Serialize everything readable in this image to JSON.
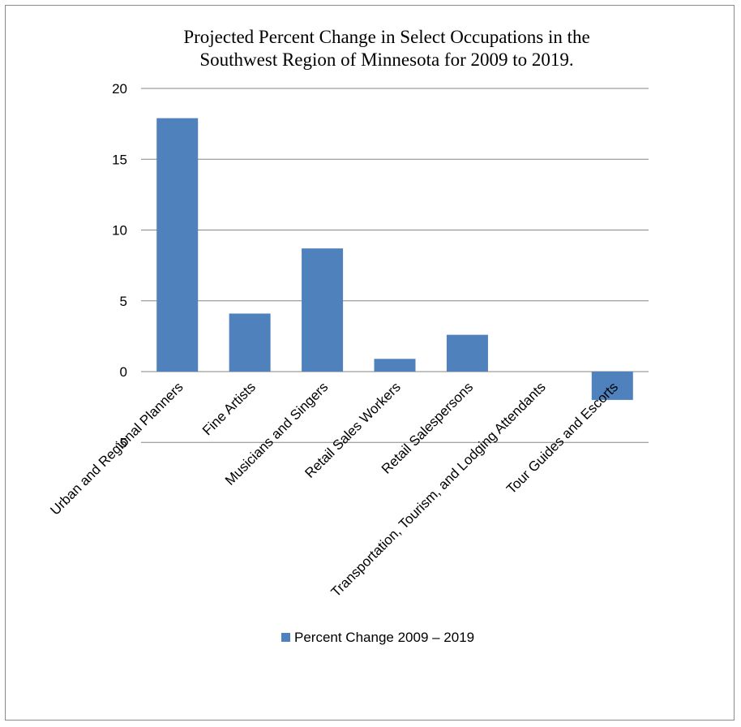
{
  "chart_data": {
    "type": "bar",
    "title_lines": [
      "Projected Percent Change in Select Occupations in the",
      "Southwest Region of Minnesota for 2009 to 2019."
    ],
    "categories": [
      "Urban and Regional Planners",
      "Fine Artists",
      "Musicians and Singers",
      "Retail Sales Workers",
      "Retail Salespersons",
      "Transportation, Tourism, and Lodging Attendants",
      "Tour Guides and Escorts"
    ],
    "series": [
      {
        "name": "Percent Change 2009 – 2019",
        "values": [
          17.9,
          4.1,
          8.7,
          0.9,
          2.6,
          0,
          -2.0
        ],
        "color": "#4f81bd"
      }
    ],
    "ylim": [
      -5,
      20
    ],
    "yticks": [
      -5,
      0,
      5,
      10,
      15,
      20
    ],
    "grid": true,
    "legend_position": "bottom"
  }
}
